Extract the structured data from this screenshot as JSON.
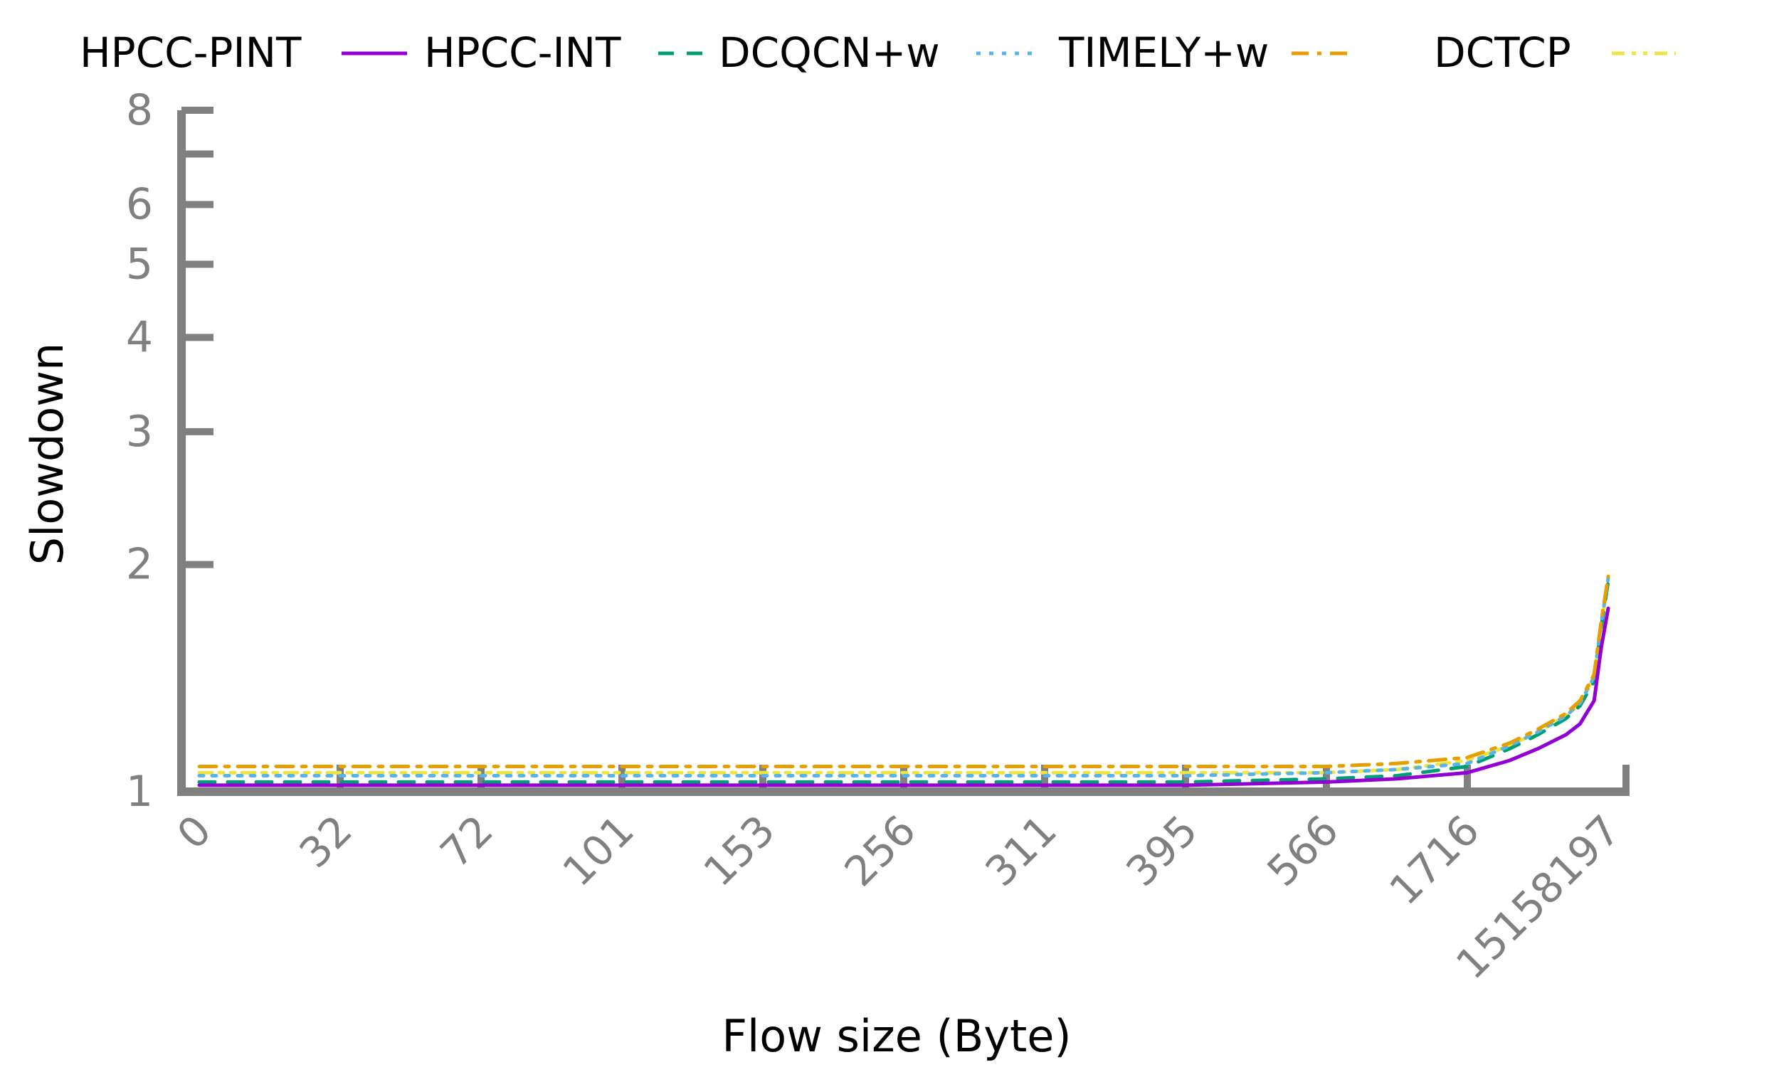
{
  "chart_data": {
    "type": "line",
    "title": "",
    "xlabel": "Flow size (Byte)",
    "ylabel": "Slowdown",
    "x_tick_labels": [
      "0",
      "32",
      "72",
      "101",
      "153",
      "256",
      "311",
      "395",
      "566",
      "1716",
      "15158197"
    ],
    "yscale": "log",
    "ylim": [
      1,
      8
    ],
    "y_tick_labels": [
      "1",
      "2",
      "3",
      "4",
      "5",
      "6",
      "8"
    ],
    "legend_placement": "top",
    "grid": false,
    "x_positions": [
      0,
      10,
      20,
      30,
      40,
      50,
      60,
      70,
      80,
      85,
      90,
      93,
      95,
      97,
      98,
      99,
      99.5,
      100
    ],
    "series": [
      {
        "name": "HPCC-PINT",
        "color": "#000000",
        "dash": "none",
        "values": [
          1.0,
          1.0,
          1.0,
          1.0,
          1.0,
          1.0,
          1.0,
          1.0,
          1.0,
          1.0,
          1.0,
          1.0,
          1.0,
          1.0,
          1.0,
          1.0,
          1.0,
          1.0
        ]
      },
      {
        "name": "HPCC-INT",
        "color": "#9400D3",
        "dash": "none",
        "values": [
          1.02,
          1.02,
          1.02,
          1.02,
          1.02,
          1.02,
          1.02,
          1.02,
          1.03,
          1.04,
          1.06,
          1.1,
          1.14,
          1.19,
          1.23,
          1.32,
          1.55,
          1.75
        ]
      },
      {
        "name": "DCQCN+w",
        "color": "#009E73",
        "dash": "dash",
        "values": [
          1.03,
          1.03,
          1.03,
          1.03,
          1.03,
          1.03,
          1.03,
          1.03,
          1.04,
          1.05,
          1.08,
          1.14,
          1.19,
          1.25,
          1.3,
          1.4,
          1.65,
          1.9
        ]
      },
      {
        "name": "TIMELY+w",
        "color": "#56B4E9",
        "dash": "dot",
        "values": [
          1.05,
          1.05,
          1.05,
          1.05,
          1.05,
          1.05,
          1.05,
          1.05,
          1.06,
          1.07,
          1.09,
          1.15,
          1.2,
          1.26,
          1.31,
          1.42,
          1.67,
          1.92
        ]
      },
      {
        "name": "DCTCP",
        "color": "#E69F00",
        "dash": "dashdot",
        "values": [
          1.08,
          1.08,
          1.08,
          1.08,
          1.08,
          1.08,
          1.08,
          1.08,
          1.08,
          1.09,
          1.11,
          1.16,
          1.21,
          1.27,
          1.32,
          1.43,
          1.68,
          1.93
        ]
      },
      {
        "name": "",
        "color": "#F0E442",
        "dash": "dashdotdot",
        "values": [
          1.06,
          1.06,
          1.06,
          1.06,
          1.06,
          1.06,
          1.06,
          1.06,
          1.06,
          1.07,
          1.1,
          1.15,
          1.2,
          1.26,
          1.31,
          1.42,
          1.66,
          1.91
        ]
      }
    ]
  }
}
